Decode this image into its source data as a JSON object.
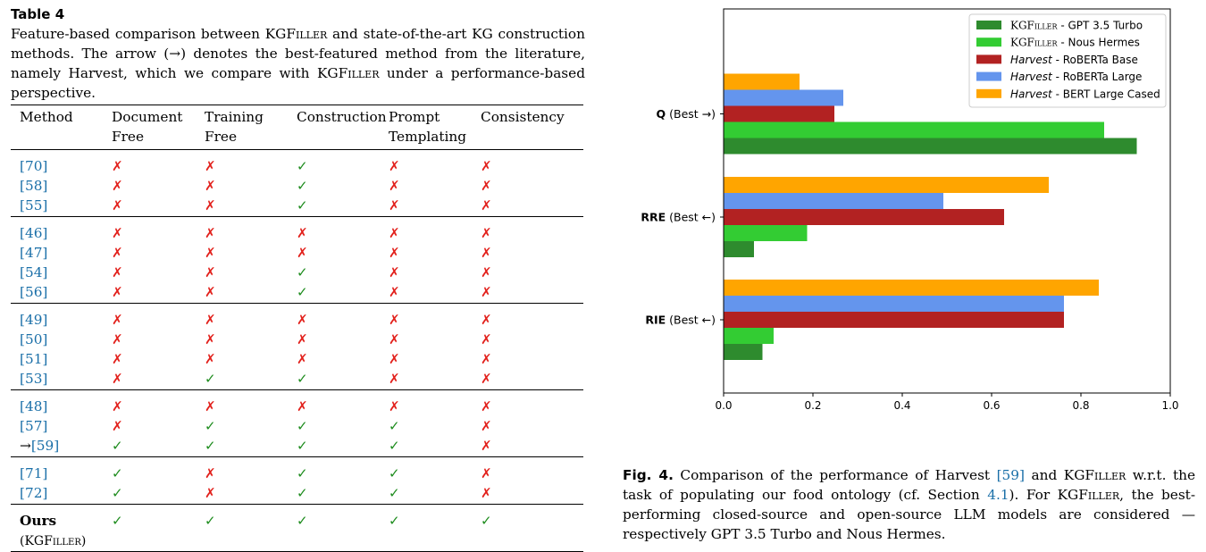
{
  "table": {
    "label": "Table 4",
    "caption": {
      "p1": "Feature-based comparison between ",
      "kg": "KGFiller",
      "p2": " and state-of-the-art KG construction methods. The arrow (→) denotes the best-featured method from the literature, namely Harvest, which we compare with ",
      "kg2": "KGFiller",
      "p3": " under a performance-based perspective."
    },
    "headers": {
      "method": "Method",
      "document_free": [
        "Document",
        "Free"
      ],
      "training_free": [
        "Training",
        "Free"
      ],
      "construction": "Construction",
      "prompt_templating": [
        "Prompt",
        "Templating"
      ],
      "consistency": "Consistency"
    },
    "groups": [
      [
        {
          "method": "[70]",
          "marks": [
            false,
            false,
            true,
            false,
            false
          ]
        },
        {
          "method": "[58]",
          "marks": [
            false,
            false,
            true,
            false,
            false
          ]
        },
        {
          "method": "[55]",
          "marks": [
            false,
            false,
            true,
            false,
            false
          ]
        }
      ],
      [
        {
          "method": "[46]",
          "marks": [
            false,
            false,
            false,
            false,
            false
          ]
        },
        {
          "method": "[47]",
          "marks": [
            false,
            false,
            false,
            false,
            false
          ]
        },
        {
          "method": "[54]",
          "marks": [
            false,
            false,
            true,
            false,
            false
          ]
        },
        {
          "method": "[56]",
          "marks": [
            false,
            false,
            true,
            false,
            false
          ]
        }
      ],
      [
        {
          "method": "[49]",
          "marks": [
            false,
            false,
            false,
            false,
            false
          ]
        },
        {
          "method": "[50]",
          "marks": [
            false,
            false,
            false,
            false,
            false
          ]
        },
        {
          "method": "[51]",
          "marks": [
            false,
            false,
            false,
            false,
            false
          ]
        },
        {
          "method": "[53]",
          "marks": [
            false,
            true,
            true,
            false,
            false
          ]
        }
      ],
      [
        {
          "method": "[48]",
          "marks": [
            false,
            false,
            false,
            false,
            false
          ]
        },
        {
          "method": "[57]",
          "marks": [
            false,
            true,
            true,
            true,
            false
          ]
        },
        {
          "method": "[59]",
          "arrow": "→",
          "marks": [
            true,
            true,
            true,
            true,
            false
          ]
        }
      ],
      [
        {
          "method": "[71]",
          "marks": [
            true,
            false,
            true,
            true,
            false
          ]
        },
        {
          "method": "[72]",
          "marks": [
            true,
            false,
            true,
            true,
            false
          ]
        }
      ]
    ],
    "ours": {
      "name": "Ours",
      "sub": "(KGFiller)",
      "marks": [
        true,
        true,
        true,
        true,
        true
      ]
    },
    "symbols": {
      "yes": "✓",
      "no": "✗"
    },
    "colors": {
      "yes": "#1e8c1e",
      "no": "#e2211c",
      "cite": "#1a6fa8"
    }
  },
  "chart_data": {
    "type": "bar",
    "orientation": "horizontal",
    "categories": [
      "Q (Best →)",
      "RRE (Best ←)",
      "RIE (Best ←)"
    ],
    "series": [
      {
        "name": "KGFiller - GPT 3.5 Turbo",
        "color": "#2e8b2e",
        "values": [
          0.925,
          0.068,
          0.087
        ]
      },
      {
        "name": "KGFiller - Nous Hermes",
        "color": "#33cc33",
        "values": [
          0.852,
          0.187,
          0.112
        ]
      },
      {
        "name": "Harvest - RoBERTa Base",
        "color": "#b22222",
        "values": [
          0.248,
          0.628,
          0.762
        ]
      },
      {
        "name": "Harvest - RoBERTa Large",
        "color": "#6495ed",
        "values": [
          0.268,
          0.492,
          0.762
        ]
      },
      {
        "name": "Harvest - BERT Large Cased",
        "color": "#ffa500",
        "values": [
          0.17,
          0.728,
          0.84
        ]
      }
    ],
    "legend_items": [
      {
        "prefix": "KGFiller",
        "suffix": " - GPT 3.5 Turbo",
        "color": "#2e8b2e",
        "prefix_style": "smallcaps"
      },
      {
        "prefix": "KGFiller",
        "suffix": " - Nous Hermes",
        "color": "#33cc33",
        "prefix_style": "smallcaps"
      },
      {
        "prefix": "Harvest",
        "suffix": " - RoBERTa Base",
        "color": "#b22222",
        "prefix_style": "italic"
      },
      {
        "prefix": "Harvest",
        "suffix": " - RoBERTa Large",
        "color": "#6495ed",
        "prefix_style": "italic"
      },
      {
        "prefix": "Harvest",
        "suffix": " - BERT Large Cased",
        "color": "#ffa500",
        "prefix_style": "italic"
      }
    ],
    "category_labels": [
      {
        "bold": "Q",
        "rest": " (Best →)"
      },
      {
        "bold": "RRE",
        "rest": " (Best ←)"
      },
      {
        "bold": "RIE",
        "rest": " (Best ←)"
      }
    ],
    "xlim": [
      0,
      1.0
    ],
    "xticks": [
      "0.0",
      "0.2",
      "0.4",
      "0.6",
      "0.8",
      "1.0"
    ],
    "grid": false,
    "legend_position": "top-right",
    "xlabel": "",
    "ylabel": ""
  },
  "figure_caption": {
    "label": "Fig. 4.",
    "p1": " Comparison of the performance of Harvest ",
    "cite1": "[59]",
    "p2": " and ",
    "kg": "KGFiller",
    "p3": " w.r.t. the task of populating our food ontology (cf. Section ",
    "cite2": "4.1",
    "p4": "). For ",
    "kg2": "KGFiller",
    "p5": ", the best-performing closed-source and open-source LLM models are considered — respectively GPT 3.5 Turbo and Nous Hermes."
  }
}
